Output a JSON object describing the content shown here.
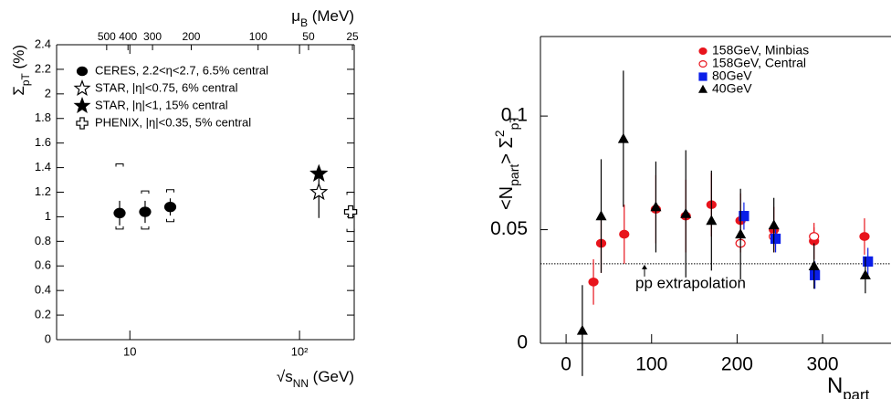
{
  "chart_data": [
    {
      "type": "scatter",
      "xscale": "log",
      "xlim": [
        3.7,
        210
      ],
      "ylim": [
        0,
        2.4
      ],
      "xticks": [
        10,
        {
          "value": 100,
          "label": "10²"
        }
      ],
      "yticks": [
        0,
        0.2,
        0.4,
        0.6,
        0.8,
        1,
        1.2,
        1.4,
        1.6,
        1.8,
        2,
        2.2,
        2.4
      ],
      "x2ticks": [
        {
          "value": 7.3,
          "label": "500"
        },
        {
          "value": 9.75,
          "label": "400"
        },
        {
          "value": 13.6,
          "label": "300"
        },
        {
          "value": 23,
          "label": "200"
        },
        {
          "value": 57,
          "label": "100"
        },
        {
          "value": 113,
          "label": "50"
        },
        {
          "value": 205,
          "label": "25"
        }
      ],
      "xlabel": [
        {
          "text": "√s"
        },
        {
          "text": "NN",
          "pos": "sub"
        },
        {
          "text": " (GeV)"
        }
      ],
      "ylabel": [
        {
          "text": "Σ"
        },
        {
          "text": "pT",
          "pos": "sub"
        },
        {
          "text": " (%)"
        }
      ],
      "x2label": [
        {
          "text": "μ"
        },
        {
          "text": "B",
          "pos": "sub"
        },
        {
          "text": " (MeV)"
        }
      ],
      "legend": "upper left",
      "series": [
        {
          "name": "CERES, 2.2<η<2.7, 6.5% central",
          "color": "#000000",
          "marker": "circle",
          "x": [
            8.7,
            12.3,
            17.3
          ],
          "values": [
            1.03,
            1.04,
            1.08
          ],
          "errors": [
            0.1,
            0.09,
            0.07
          ],
          "sys_low": [
            0.9,
            0.9,
            0.96
          ],
          "sys_high": [
            1.43,
            1.21,
            1.22
          ]
        },
        {
          "name": "STAR, |η|<0.75, 6% central",
          "color": "#000000",
          "marker": "open-star",
          "x": [
            130
          ],
          "values": [
            1.2
          ],
          "errors": [
            0.21
          ]
        },
        {
          "name": "STAR, |η|<1, 15% central",
          "color": "#000000",
          "marker": "star",
          "x": [
            130
          ],
          "values": [
            1.35
          ]
        },
        {
          "name": "PHENIX, |η|<0.35, 5% central",
          "color": "#000000",
          "marker": "open-cross",
          "x": [
            200
          ],
          "values": [
            1.04
          ],
          "errors": [
            0.05
          ],
          "sys_low": [
            0.88
          ],
          "sys_high": [
            1.2
          ]
        }
      ]
    },
    {
      "type": "scatter",
      "xlim": [
        -30,
        380
      ],
      "ylim": [
        0,
        0.135
      ],
      "xticks": [
        0,
        100,
        200,
        300
      ],
      "yticks": [
        0,
        0.05,
        0.1
      ],
      "xlabel": [
        {
          "text": "N"
        },
        {
          "text": "part",
          "pos": "sub"
        }
      ],
      "ylabel": [
        {
          "text": "<N"
        },
        {
          "text": "part",
          "pos": "sub"
        },
        {
          "text": "> Σ"
        },
        {
          "text": "2",
          "pos": "super"
        },
        {
          "text": "pT",
          "pos": "sub"
        }
      ],
      "legend": "upper right",
      "reference_line": {
        "value": 0.035,
        "label": "pp extrapolation"
      },
      "series": [
        {
          "name": "158GeV, Minbias",
          "color": "#e8141c",
          "marker": "circle",
          "x": [
            32,
            41,
            68,
            105,
            140,
            170,
            204,
            243,
            290,
            349
          ],
          "values": [
            0.027,
            0.044,
            0.048,
            0.059,
            0.056,
            0.061,
            0.054,
            0.05,
            0.045,
            0.047
          ],
          "errors": [
            0.01,
            0.013,
            0.013,
            0.015,
            0.016,
            0.014,
            0.012,
            0.01,
            0.008,
            0.008
          ]
        },
        {
          "name": "158GeV, Central",
          "color": "#e8141c",
          "marker": "open-circle",
          "x": [
            204,
            243,
            290
          ],
          "values": [
            0.044,
            0.047,
            0.047
          ],
          "errors": [
            0.004,
            0.004,
            0.004
          ]
        },
        {
          "name": "80GeV",
          "color": "#0a1ee8",
          "marker": "square",
          "x": [
            208,
            245,
            291,
            353
          ],
          "values": [
            0.056,
            0.046,
            0.03,
            0.036
          ],
          "errors": [
            0.006,
            0.006,
            0.006,
            0.006
          ]
        },
        {
          "name": "40GeV",
          "color": "#000000",
          "marker": "triangle",
          "x": [
            19,
            41,
            67,
            105,
            140,
            170,
            204,
            243,
            290,
            350
          ],
          "values": [
            0.0056,
            0.056,
            0.09,
            0.06,
            0.057,
            0.054,
            0.048,
            0.052,
            0.034,
            0.03
          ],
          "errors": [
            0.02,
            0.025,
            0.03,
            0.02,
            0.028,
            0.022,
            0.02,
            0.012,
            0.01,
            0.008
          ]
        }
      ]
    }
  ]
}
